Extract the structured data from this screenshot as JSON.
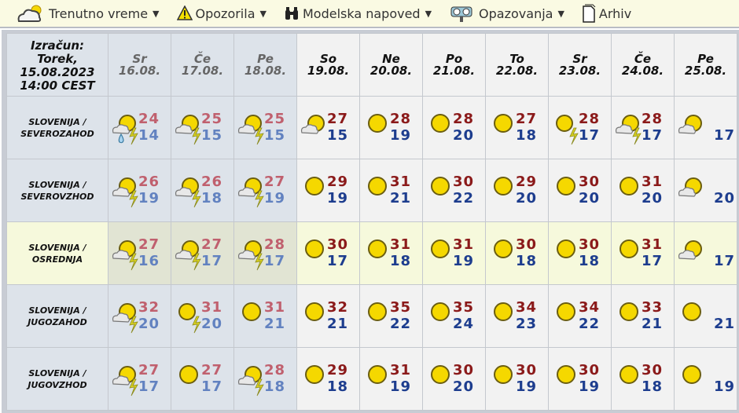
{
  "nav": [
    {
      "label": "Trenutno vreme",
      "icon": "cloud-sun-icon",
      "dropdown": true
    },
    {
      "label": "Opozorila",
      "icon": "warning-icon",
      "dropdown": true
    },
    {
      "label": "Modelska napoved",
      "icon": "binoculars-icon",
      "dropdown": true
    },
    {
      "label": "Opazovanja",
      "icon": "observation-icon",
      "dropdown": true
    },
    {
      "label": "Arhiv",
      "icon": "document-icon",
      "dropdown": false
    }
  ],
  "corner": {
    "line1": "Izračun:",
    "line2": "Torek,",
    "line3": "15.08.2023",
    "line4": "14:00 CEST"
  },
  "days": [
    {
      "name": "Sr",
      "date": "16.08.",
      "past": true
    },
    {
      "name": "Če",
      "date": "17.08.",
      "past": true
    },
    {
      "name": "Pe",
      "date": "18.08.",
      "past": true
    },
    {
      "name": "So",
      "date": "19.08.",
      "past": false
    },
    {
      "name": "Ne",
      "date": "20.08.",
      "past": false
    },
    {
      "name": "Po",
      "date": "21.08.",
      "past": false
    },
    {
      "name": "To",
      "date": "22.08.",
      "past": false
    },
    {
      "name": "Sr",
      "date": "23.08.",
      "past": false
    },
    {
      "name": "Če",
      "date": "24.08.",
      "past": false
    },
    {
      "name": "Pe",
      "date": "25.08.",
      "past": false
    }
  ],
  "rows": [
    {
      "region": [
        "SLOVENIJA /",
        "SEVEROZAHOD"
      ],
      "highlight": false,
      "cells": [
        {
          "icon": "partly-cloudy-storm-rain",
          "max": "24",
          "min": "14"
        },
        {
          "icon": "partly-cloudy-storm",
          "max": "25",
          "min": "15"
        },
        {
          "icon": "partly-cloudy-storm",
          "max": "25",
          "min": "15"
        },
        {
          "icon": "partly-cloudy",
          "max": "27",
          "min": "15"
        },
        {
          "icon": "sunny",
          "max": "28",
          "min": "19"
        },
        {
          "icon": "sunny",
          "max": "28",
          "min": "20"
        },
        {
          "icon": "sunny",
          "max": "27",
          "min": "18"
        },
        {
          "icon": "sunny-storm",
          "max": "28",
          "min": "17"
        },
        {
          "icon": "partly-cloudy-storm",
          "max": "28",
          "min": "17"
        },
        {
          "icon": "partly-cloudy",
          "max": "",
          "min": "17"
        }
      ]
    },
    {
      "region": [
        "SLOVENIJA /",
        "SEVEROVZHOD"
      ],
      "highlight": false,
      "cells": [
        {
          "icon": "partly-cloudy-storm",
          "max": "26",
          "min": "19"
        },
        {
          "icon": "partly-cloudy-storm",
          "max": "26",
          "min": "18"
        },
        {
          "icon": "partly-cloudy-storm",
          "max": "27",
          "min": "19"
        },
        {
          "icon": "sunny",
          "max": "29",
          "min": "19"
        },
        {
          "icon": "sunny",
          "max": "31",
          "min": "21"
        },
        {
          "icon": "sunny",
          "max": "30",
          "min": "22"
        },
        {
          "icon": "sunny",
          "max": "29",
          "min": "20"
        },
        {
          "icon": "sunny",
          "max": "30",
          "min": "20"
        },
        {
          "icon": "sunny",
          "max": "31",
          "min": "20"
        },
        {
          "icon": "partly-cloudy",
          "max": "",
          "min": "20"
        }
      ]
    },
    {
      "region": [
        "SLOVENIJA /",
        "OSREDNJA"
      ],
      "highlight": true,
      "cells": [
        {
          "icon": "partly-cloudy-storm",
          "max": "27",
          "min": "16"
        },
        {
          "icon": "partly-cloudy-storm",
          "max": "27",
          "min": "17"
        },
        {
          "icon": "partly-cloudy-storm",
          "max": "28",
          "min": "17"
        },
        {
          "icon": "sunny",
          "max": "30",
          "min": "17"
        },
        {
          "icon": "sunny",
          "max": "31",
          "min": "18"
        },
        {
          "icon": "sunny",
          "max": "31",
          "min": "19"
        },
        {
          "icon": "sunny",
          "max": "30",
          "min": "18"
        },
        {
          "icon": "sunny",
          "max": "30",
          "min": "18"
        },
        {
          "icon": "sunny",
          "max": "31",
          "min": "17"
        },
        {
          "icon": "partly-cloudy",
          "max": "",
          "min": "17"
        }
      ]
    },
    {
      "region": [
        "SLOVENIJA /",
        "JUGOZAHOD"
      ],
      "highlight": false,
      "cells": [
        {
          "icon": "partly-cloudy-storm",
          "max": "32",
          "min": "20"
        },
        {
          "icon": "sunny-storm",
          "max": "31",
          "min": "20"
        },
        {
          "icon": "sunny",
          "max": "31",
          "min": "21"
        },
        {
          "icon": "sunny",
          "max": "32",
          "min": "21"
        },
        {
          "icon": "sunny",
          "max": "35",
          "min": "22"
        },
        {
          "icon": "sunny",
          "max": "35",
          "min": "24"
        },
        {
          "icon": "sunny",
          "max": "34",
          "min": "23"
        },
        {
          "icon": "sunny",
          "max": "34",
          "min": "22"
        },
        {
          "icon": "sunny",
          "max": "33",
          "min": "21"
        },
        {
          "icon": "sunny",
          "max": "",
          "min": "21"
        }
      ]
    },
    {
      "region": [
        "SLOVENIJA /",
        "JUGOVZHOD"
      ],
      "highlight": false,
      "cells": [
        {
          "icon": "partly-cloudy-storm",
          "max": "27",
          "min": "17"
        },
        {
          "icon": "sunny",
          "max": "27",
          "min": "17"
        },
        {
          "icon": "partly-cloudy-storm",
          "max": "28",
          "min": "18"
        },
        {
          "icon": "sunny",
          "max": "29",
          "min": "18"
        },
        {
          "icon": "sunny",
          "max": "31",
          "min": "19"
        },
        {
          "icon": "sunny",
          "max": "30",
          "min": "20"
        },
        {
          "icon": "sunny",
          "max": "30",
          "min": "19"
        },
        {
          "icon": "sunny",
          "max": "30",
          "min": "19"
        },
        {
          "icon": "sunny",
          "max": "30",
          "min": "18"
        },
        {
          "icon": "sunny",
          "max": "",
          "min": "19"
        }
      ]
    }
  ]
}
